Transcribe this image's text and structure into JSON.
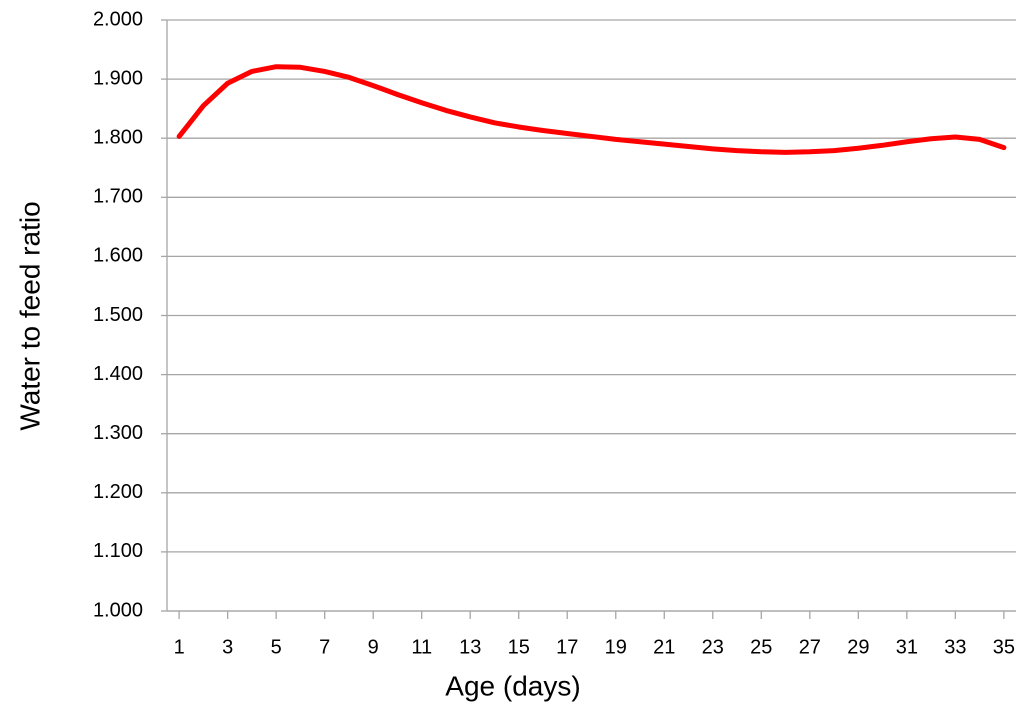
{
  "chart_data": {
    "type": "line",
    "x_label": "Age (days)",
    "y_label": "Water to feed ratio",
    "x": [
      1,
      2,
      3,
      4,
      5,
      6,
      7,
      8,
      9,
      10,
      11,
      12,
      13,
      14,
      15,
      16,
      17,
      18,
      19,
      20,
      21,
      22,
      23,
      24,
      25,
      26,
      27,
      28,
      29,
      30,
      31,
      32,
      33,
      34,
      35
    ],
    "series": [
      {
        "color": "#ff0000",
        "values": [
          1.803,
          1.855,
          1.893,
          1.913,
          1.921,
          1.92,
          1.913,
          1.903,
          1.889,
          1.874,
          1.86,
          1.847,
          1.836,
          1.826,
          1.819,
          1.813,
          1.808,
          1.803,
          1.798,
          1.794,
          1.79,
          1.786,
          1.782,
          1.779,
          1.777,
          1.776,
          1.777,
          1.779,
          1.783,
          1.788,
          1.794,
          1.799,
          1.802,
          1.798,
          1.784
        ]
      }
    ],
    "xlim": [
      0.5,
      35.5
    ],
    "xticks": [
      1,
      3,
      5,
      7,
      9,
      11,
      13,
      15,
      17,
      19,
      21,
      23,
      25,
      27,
      29,
      31,
      33,
      35
    ],
    "ylim": [
      1,
      2
    ],
    "yticks": [
      {
        "value": 1,
        "label": "1.000"
      },
      {
        "value": 1.1,
        "label": "1.100"
      },
      {
        "value": 1.2,
        "label": "1.200"
      },
      {
        "value": 1.3,
        "label": "1.300"
      },
      {
        "value": 1.4,
        "label": "1.400"
      },
      {
        "value": 1.5,
        "label": "1.500"
      },
      {
        "value": 1.6,
        "label": "1.600"
      },
      {
        "value": 1.7,
        "label": "1.700"
      },
      {
        "value": 1.8,
        "label": "1.800"
      },
      {
        "value": 1.9,
        "label": "1.900"
      },
      {
        "value": 2,
        "label": "2.000"
      }
    ],
    "grid": true
  }
}
